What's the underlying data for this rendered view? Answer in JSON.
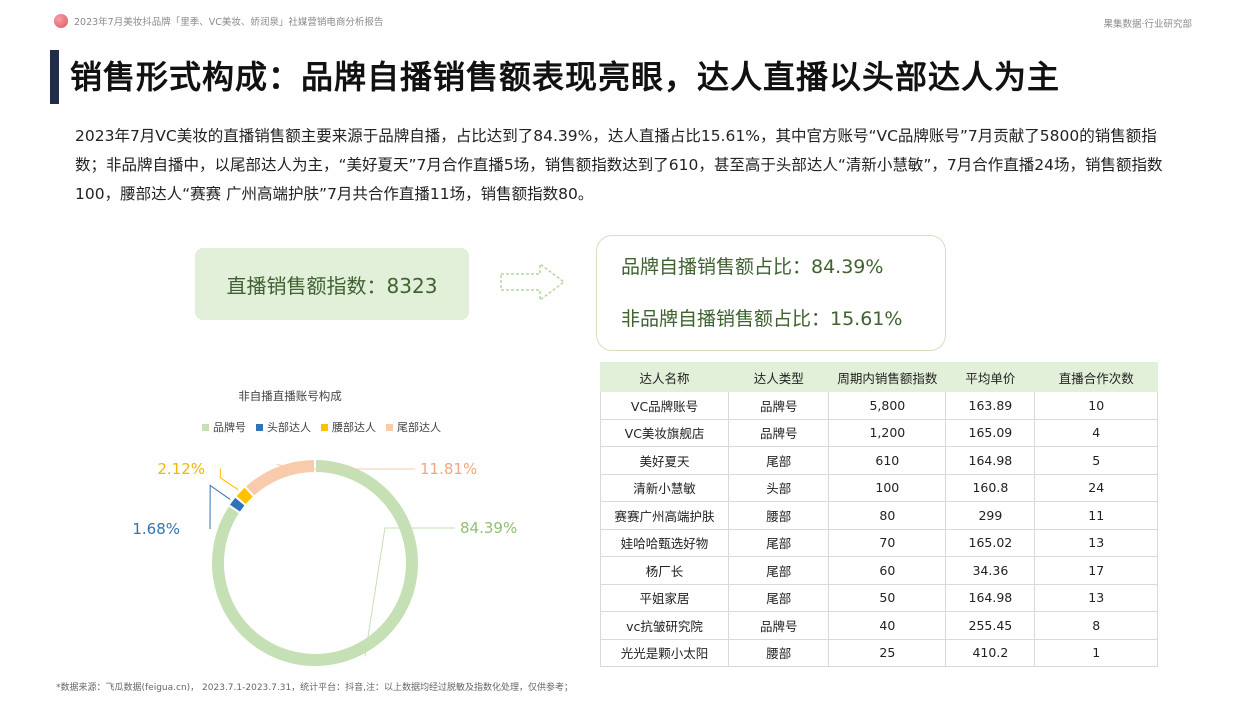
{
  "header": {
    "report_title": "2023年7月美妆抖品牌「里季、VC美妆、娇润泉」社媒营销电商分析报告",
    "org": "果集数据·行业研究部"
  },
  "page_title": "销售形式构成：品牌自播销售额表现亮眼，达人直播以头部达人为主",
  "description": "2023年7月VC美妆的直播销售额主要来源于品牌自播，占比达到了84.39%，达人直播占比15.61%，其中官方账号“VC品牌账号”7月贡献了5800的销售额指数；非品牌自播中，以尾部达人为主，“美好夏天”7月合作直播5场，销售额指数达到了610，甚至高于头部达人“清新小慧敏”，7月合作直播24场，销售额指数100，腰部达人“赛赛 广州高端护肤”7月共合作直播11场，销售额指数80。",
  "kpi": {
    "text": "直播销售额指数：8323"
  },
  "ratios": {
    "brand_self": "品牌自播销售额占比：84.39%",
    "non_brand_self": "非品牌自播销售额占比：15.61%"
  },
  "chart_data": {
    "type": "pie",
    "title": "非自播直播账号构成",
    "categories": [
      "品牌号",
      "头部达人",
      "腰部达人",
      "尾部达人"
    ],
    "values": [
      84.39,
      1.68,
      2.12,
      11.81
    ],
    "labels": [
      "84.39%",
      "1.68%",
      "2.12%",
      "11.81%"
    ],
    "colors": [
      "#c5e0b4",
      "#2e75b6",
      "#ffc000",
      "#f8cbad"
    ],
    "legend_position": "top"
  },
  "table": {
    "headers": [
      "达人名称",
      "达人类型",
      "周期内销售额指数",
      "平均单价",
      "直播合作次数"
    ],
    "rows": [
      [
        "VC品牌账号",
        "品牌号",
        "5,800",
        "163.89",
        "10"
      ],
      [
        "VC美妆旗舰店",
        "品牌号",
        "1,200",
        "165.09",
        "4"
      ],
      [
        "美好夏天",
        "尾部",
        "610",
        "164.98",
        "5"
      ],
      [
        "清新小慧敏",
        "头部",
        "100",
        "160.8",
        "24"
      ],
      [
        "赛赛广州高端护肤",
        "腰部",
        "80",
        "299",
        "11"
      ],
      [
        "娃哈哈甄选好物",
        "尾部",
        "70",
        "165.02",
        "13"
      ],
      [
        "杨厂长",
        "尾部",
        "60",
        "34.36",
        "17"
      ],
      [
        "平姐家居",
        "尾部",
        "50",
        "164.98",
        "13"
      ],
      [
        "vc抗皱研究院",
        "品牌号",
        "40",
        "255.45",
        "8"
      ],
      [
        "光光是颗小太阳",
        "腰部",
        "25",
        "410.2",
        "1"
      ]
    ]
  },
  "footnote": "*数据来源：飞瓜数据(feigua.cn)， 2023.7.1-2023.7.31，统计平台：抖音,注：以上数据均经过脱敏及指数化处理，仅供参考；"
}
